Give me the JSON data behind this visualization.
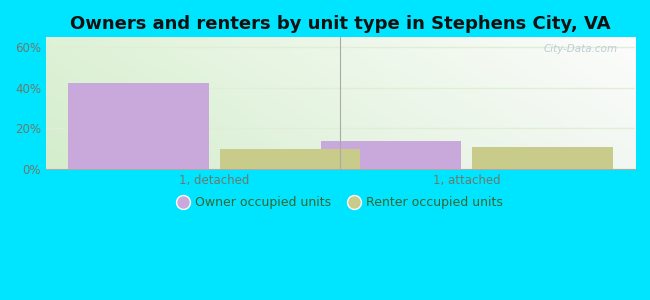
{
  "title": "Owners and renters by unit type in Stephens City, VA",
  "categories": [
    "1, detached",
    "1, attached"
  ],
  "owner_values": [
    42.5,
    14.0
  ],
  "renter_values": [
    10.0,
    11.0
  ],
  "owner_color": "#c9a8dc",
  "renter_color": "#c8cb8a",
  "yticks": [
    0,
    20,
    40,
    60
  ],
  "ytick_labels": [
    "0%",
    "20%",
    "40%",
    "60%"
  ],
  "ylim": [
    0,
    65
  ],
  "bar_width": 0.25,
  "group_centers": [
    0.3,
    0.75
  ],
  "xlim": [
    0.0,
    1.05
  ],
  "background_outer": "#00e5ff",
  "background_inner_topleft": "#d4edcc",
  "background_inner_topright": "#e8f5f0",
  "background_inner_bottomleft": "#e0f0d8",
  "background_inner_bottomright": "#f5fff8",
  "legend_owner": "Owner occupied units",
  "legend_renter": "Renter occupied units",
  "title_fontsize": 13,
  "axis_label_color": "#6a7a6a",
  "grid_color": "#e0eed8",
  "watermark": "City-Data.com"
}
